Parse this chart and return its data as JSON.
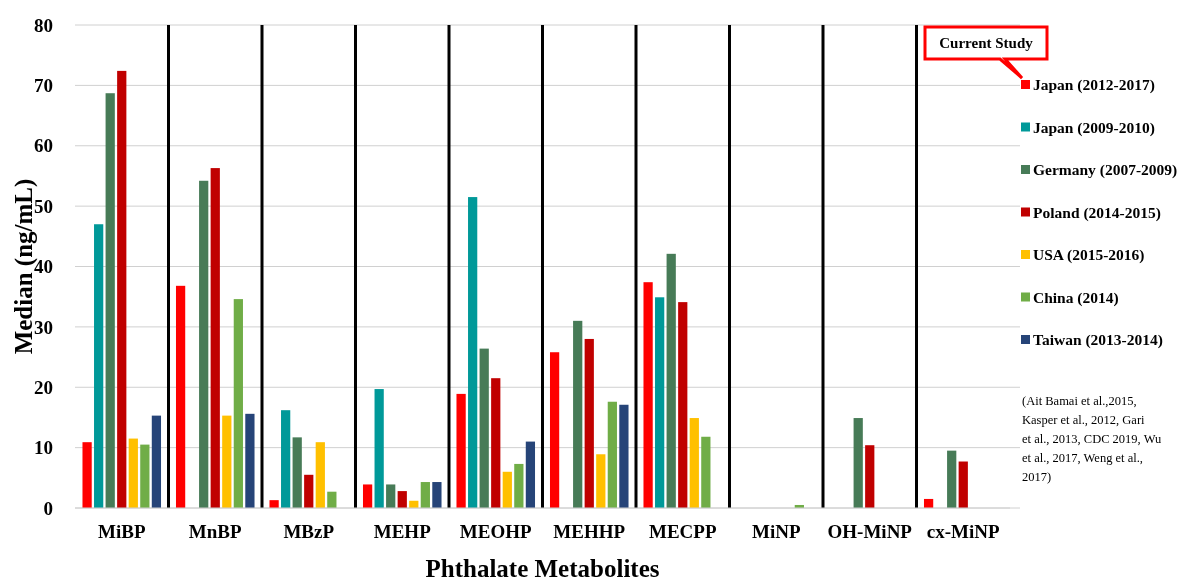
{
  "chart_data": {
    "type": "bar",
    "xlabel": "Phthalate Metabolites",
    "ylabel": "Median (ng/mL)",
    "categories": [
      "MiBP",
      "MnBP",
      "MBzP",
      "MEHP",
      "MEOHP",
      "MEHHP",
      "MECPP",
      "MiNP",
      "OH-MiNP",
      "cx-MiNP"
    ],
    "series": [
      {
        "name": "Japan (2012-2017)",
        "color": "#ff0000",
        "values": [
          10.9,
          36.8,
          1.3,
          3.9,
          18.9,
          25.8,
          37.4,
          null,
          null,
          1.5
        ]
      },
      {
        "name": "Japan (2009-2010)",
        "color": "#009999",
        "values": [
          47.0,
          null,
          16.2,
          19.7,
          51.5,
          null,
          34.9,
          null,
          null,
          null
        ]
      },
      {
        "name": "Germany (2007-2009)",
        "color": "#477b57",
        "values": [
          68.7,
          54.2,
          11.7,
          3.9,
          26.4,
          31.0,
          42.1,
          null,
          14.9,
          9.5
        ]
      },
      {
        "name": "Poland (2014-2015)",
        "color": "#c00000",
        "values": [
          72.4,
          56.3,
          5.5,
          2.8,
          21.5,
          28.0,
          34.1,
          null,
          10.4,
          7.7
        ]
      },
      {
        "name": "USA (2015-2016)",
        "color": "#ffc000",
        "values": [
          11.5,
          15.3,
          10.9,
          1.2,
          6.0,
          8.9,
          14.9,
          null,
          null,
          null
        ]
      },
      {
        "name": "China (2014)",
        "color": "#70ad47",
        "values": [
          10.5,
          34.6,
          2.7,
          4.3,
          7.3,
          17.6,
          11.8,
          0.5,
          null,
          null
        ]
      },
      {
        "name": "Taiwan (2013-2014)",
        "color": "#264478",
        "values": [
          15.3,
          15.6,
          null,
          4.3,
          11.0,
          17.1,
          null,
          null,
          null,
          null
        ]
      }
    ],
    "ylim": [
      0,
      80
    ],
    "yticks": [
      0,
      10,
      20,
      30,
      40,
      50,
      60,
      70,
      80
    ],
    "grid": true,
    "legend": "right",
    "annotations": [
      "Current Study",
      "(Ait Bamai et al.,2015, Kasper et al., 2012, Gari et al., 2013,  CDC 2019, Wu et al., 2017, Weng et al., 2017)"
    ]
  }
}
